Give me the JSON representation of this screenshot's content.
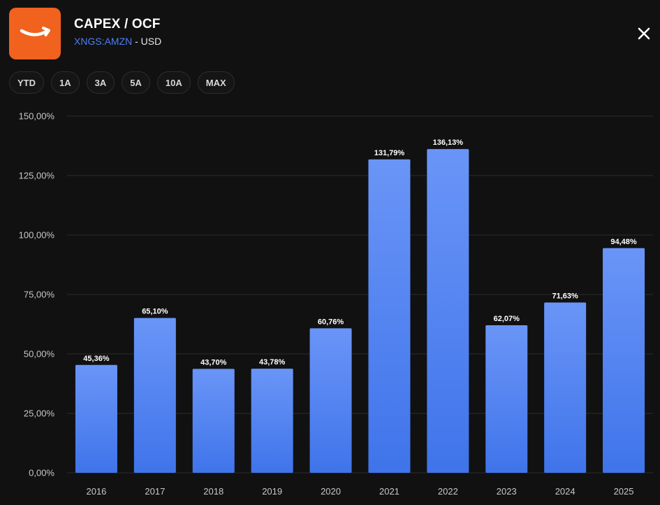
{
  "header": {
    "title": "CAPEX / OCF",
    "ticker": "XNGS:AMZN",
    "currency_suffix": " - USD",
    "logo_icon": "amazon-smile-logo",
    "close_icon": "close-icon"
  },
  "periods": [
    "YTD",
    "1A",
    "3A",
    "5A",
    "10A",
    "MAX"
  ],
  "colors": {
    "background": "#111112",
    "bar_top": "#6a95f7",
    "bar_bottom": "#3f74ea",
    "grid": "#2a2a2c",
    "logo_bg": "#f0621e",
    "ticker": "#4f7ff0"
  },
  "chart_data": {
    "type": "bar",
    "categories": [
      "2016",
      "2017",
      "2018",
      "2019",
      "2020",
      "2021",
      "2022",
      "2023",
      "2024",
      "2025"
    ],
    "values": [
      45.36,
      65.1,
      43.7,
      43.78,
      60.76,
      131.79,
      136.13,
      62.07,
      71.63,
      94.48
    ],
    "data_labels": [
      "45,36%",
      "65,10%",
      "43,70%",
      "43,78%",
      "60,76%",
      "131,79%",
      "136,13%",
      "62,07%",
      "71,63%",
      "94,48%"
    ],
    "yticks": [
      0,
      25,
      50,
      75,
      100,
      125,
      150
    ],
    "ytick_labels": [
      "0,00%",
      "25,00%",
      "50,00%",
      "75,00%",
      "100,00%",
      "125,00%",
      "150,00%"
    ],
    "ylim": [
      0,
      150
    ],
    "grid": true,
    "title": "",
    "xlabel": "",
    "ylabel": ""
  }
}
